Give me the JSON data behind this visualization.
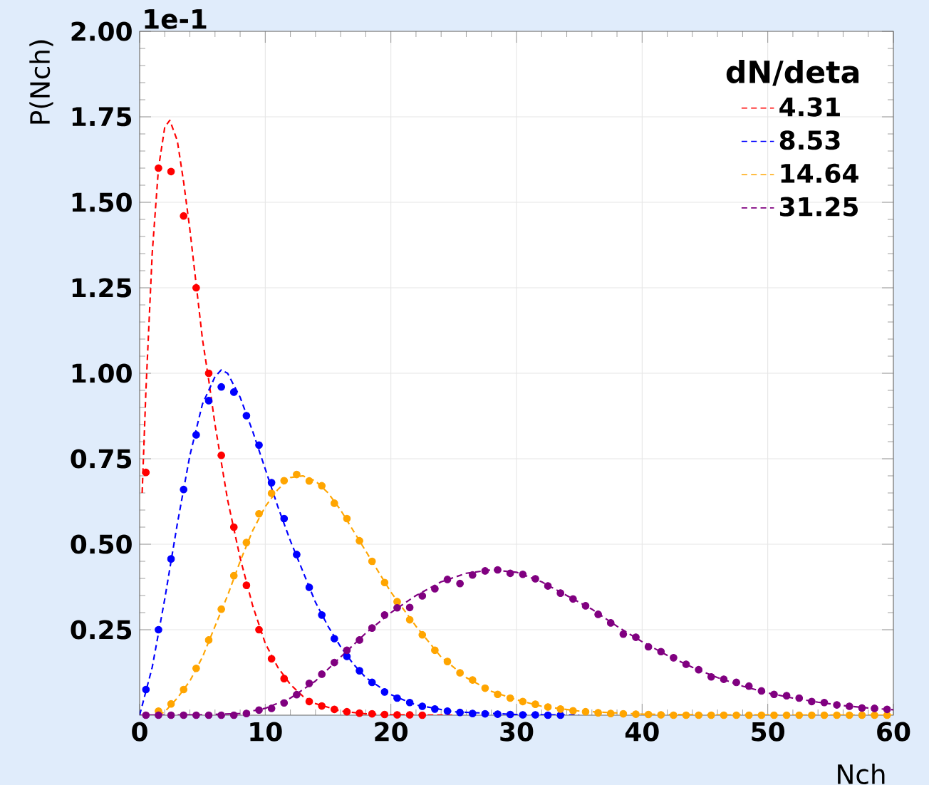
{
  "chart_data": {
    "type": "line",
    "xlabel": "Nch",
    "ylabel": "P(Nch)",
    "legend_title": "dN/deta",
    "legend": "top right",
    "grid": true,
    "xlim": [
      0,
      60
    ],
    "ylim": [
      0,
      2
    ],
    "xticks": [
      0,
      10,
      20,
      30,
      40,
      50,
      60
    ],
    "yticks": [
      {
        "value": 0.25,
        "label": "0.25"
      },
      {
        "value": 0.5,
        "label": "0.50"
      },
      {
        "value": 0.75,
        "label": "0.75"
      },
      {
        "value": 1,
        "label": "1.00"
      },
      {
        "value": 1.25,
        "label": "1.25"
      },
      {
        "value": 1.5,
        "label": "1.50"
      },
      {
        "value": 1.75,
        "label": "1.75"
      },
      {
        "value": 2,
        "label": "2.00"
      }
    ],
    "annotations": [
      "1e-1"
    ],
    "series": [
      {
        "name": "4.31",
        "line_style": "dashed",
        "marker": "none",
        "color": "#ff0000",
        "x": [
          0.2,
          0.5,
          1,
          1.5,
          2,
          2.4,
          3,
          3.5,
          4,
          4.5,
          5,
          5.5,
          6,
          7,
          8,
          9,
          10,
          11,
          12,
          13,
          14,
          16,
          18,
          20,
          25
        ],
        "values": [
          0.65,
          0.95,
          1.35,
          1.6,
          1.72,
          1.74,
          1.68,
          1.56,
          1.42,
          1.26,
          1.1,
          0.98,
          0.85,
          0.63,
          0.46,
          0.32,
          0.21,
          0.14,
          0.09,
          0.055,
          0.034,
          0.012,
          0.004,
          0.001,
          0
        ]
      },
      {
        "name": "8.53",
        "line_style": "dashed",
        "marker": "none",
        "color": "#0000ff",
        "x": [
          0,
          1,
          2,
          3,
          4,
          5,
          6,
          6.5,
          7,
          8,
          9,
          10,
          11,
          12,
          13,
          14,
          15,
          16,
          17,
          18,
          20,
          22,
          25,
          30,
          35
        ],
        "values": [
          0,
          0.14,
          0.34,
          0.56,
          0.76,
          0.91,
          0.99,
          1.01,
          1.0,
          0.93,
          0.83,
          0.72,
          0.61,
          0.51,
          0.42,
          0.33,
          0.26,
          0.2,
          0.15,
          0.11,
          0.06,
          0.03,
          0.01,
          0.002,
          0
        ]
      },
      {
        "name": "14.64",
        "line_style": "dashed",
        "marker": "none",
        "color": "#ffa500",
        "x": [
          1.5,
          2,
          3,
          4,
          5,
          6,
          7,
          8,
          9,
          10,
          11,
          12,
          13,
          14,
          15,
          16,
          18,
          20,
          22,
          24,
          26,
          28,
          30,
          32,
          35,
          40,
          45,
          60
        ],
        "values": [
          0,
          0.01,
          0.05,
          0.1,
          0.17,
          0.26,
          0.35,
          0.45,
          0.54,
          0.61,
          0.66,
          0.695,
          0.7,
          0.685,
          0.65,
          0.6,
          0.48,
          0.36,
          0.26,
          0.17,
          0.11,
          0.07,
          0.045,
          0.026,
          0.012,
          0.003,
          0.001,
          0
        ]
      },
      {
        "name": "31.25",
        "line_style": "dashed",
        "marker": "none",
        "color": "#800080",
        "x": [
          0,
          5,
          8,
          10,
          12,
          14,
          16,
          18,
          20,
          22,
          24,
          26,
          28,
          30,
          32,
          34,
          36,
          38,
          40,
          42,
          44,
          46,
          48,
          50,
          52,
          54,
          56,
          58,
          60
        ],
        "values": [
          0,
          0.001,
          0.005,
          0.02,
          0.05,
          0.1,
          0.17,
          0.24,
          0.3,
          0.35,
          0.39,
          0.415,
          0.425,
          0.418,
          0.39,
          0.35,
          0.31,
          0.26,
          0.215,
          0.175,
          0.14,
          0.11,
          0.085,
          0.065,
          0.05,
          0.038,
          0.028,
          0.021,
          0.016
        ]
      },
      {
        "type": "scatter",
        "marker": "circle",
        "color": "#ff0000",
        "x": [
          0.5,
          1.5,
          2.5,
          3.5,
          4.5,
          5.5,
          6.5,
          7.5,
          8.5,
          9.5,
          10.5,
          11.5,
          12.5,
          13.5,
          14.5,
          15.5,
          16.5,
          17.5,
          18.5,
          19.5,
          20.5,
          21.5,
          22.5
        ],
        "values": [
          0.71,
          1.6,
          1.59,
          1.46,
          1.25,
          1.0,
          0.76,
          0.55,
          0.38,
          0.25,
          0.165,
          0.107,
          null,
          0.04,
          0.027,
          0.017,
          0.01,
          0.006,
          0.004,
          0.002,
          0.001,
          0.001,
          0
        ]
      },
      {
        "type": "scatter",
        "marker": "circle",
        "color": "#0000ff",
        "x": [
          0.5,
          1.5,
          2.5,
          3.5,
          4.5,
          5.5,
          6.5,
          7.5,
          8.5,
          9.5,
          10.5,
          11.5,
          12.5,
          13.5,
          14.5,
          15.5,
          16.5,
          17.5,
          18.5,
          19.5,
          20.5,
          21.5,
          22.5,
          23.5,
          24.5,
          25.5,
          26.5,
          27.5,
          28.5,
          29.5,
          30.5,
          31.5,
          32.5,
          33.5
        ],
        "values": [
          0.075,
          0.25,
          0.457,
          0.66,
          0.82,
          0.92,
          0.96,
          0.945,
          0.876,
          0.79,
          0.68,
          0.575,
          0.47,
          0.374,
          0.293,
          0.224,
          0.172,
          0.13,
          0.096,
          0.068,
          0.05,
          0.037,
          0.026,
          0.018,
          0.012,
          0.008,
          0.005,
          0.004,
          0.003,
          0.002,
          0.001,
          0.001,
          0,
          0
        ]
      },
      {
        "type": "scatter",
        "marker": "circle",
        "color": "#ffa500",
        "x": [
          1.5,
          2.5,
          3.5,
          4.5,
          5.5,
          6.5,
          7.5,
          8.5,
          9.5,
          10.5,
          11.5,
          12.5,
          13.5,
          14.5,
          15.5,
          16.5,
          17.5,
          18.5,
          19.5,
          20.5,
          21.5,
          22.5,
          23.5,
          24.5,
          25.5,
          26.5,
          27.5,
          28.5,
          29.5,
          30.5,
          31.5,
          32.5,
          33.5,
          34.5,
          35.5,
          36.5,
          37.5,
          38.5,
          39.5,
          40.5,
          41.5,
          42.5,
          43.5,
          44.5,
          45.5,
          46.5,
          47.5,
          48.5,
          49.5,
          50.5,
          51.5,
          52.5,
          53.5,
          54.5,
          55.5,
          56.5,
          57.5,
          58.5,
          59.5
        ],
        "values": [
          0.012,
          0.033,
          0.075,
          0.137,
          0.22,
          0.31,
          0.408,
          0.505,
          0.589,
          0.649,
          0.686,
          0.704,
          0.685,
          0.671,
          0.62,
          0.575,
          0.51,
          0.45,
          0.388,
          0.332,
          0.279,
          0.235,
          0.19,
          0.157,
          0.124,
          0.103,
          0.079,
          0.061,
          0.05,
          0.04,
          0.032,
          0.024,
          0.018,
          0.013,
          0.01,
          0.007,
          0.005,
          0.004,
          0.003,
          0.002,
          0.001,
          0,
          0,
          0,
          0,
          0,
          0,
          0,
          0,
          0,
          0,
          0,
          0,
          0,
          0,
          0,
          0,
          0,
          0
        ]
      },
      {
        "type": "scatter",
        "marker": "circle",
        "color": "#800080",
        "x": [
          0.5,
          1.5,
          2.5,
          3.5,
          4.5,
          5.5,
          6.5,
          7.5,
          8.5,
          9.5,
          10.5,
          11.5,
          12.5,
          13.5,
          14.5,
          15.5,
          16.5,
          17.5,
          18.5,
          19.5,
          20.5,
          21.5,
          22.5,
          23.5,
          24.5,
          25.5,
          26.5,
          27.5,
          28.5,
          29.5,
          30.5,
          31.5,
          32.5,
          33.5,
          34.5,
          35.5,
          36.5,
          37.5,
          38.5,
          39.5,
          40.5,
          41.5,
          42.5,
          43.5,
          44.5,
          45.5,
          46.5,
          47.5,
          48.5,
          49.5,
          50.5,
          51.5,
          52.5,
          53.5,
          54.5,
          55.5,
          56.5,
          57.5,
          58.5,
          59.5
        ],
        "values": [
          0,
          0,
          0,
          0,
          0,
          0,
          0,
          0,
          0.005,
          0.015,
          0.02,
          0.036,
          0.06,
          0.093,
          0.12,
          0.154,
          0.19,
          0.22,
          0.255,
          0.293,
          0.314,
          0.315,
          0.349,
          0.37,
          0.397,
          0.385,
          0.41,
          0.422,
          0.425,
          0.415,
          0.412,
          0.399,
          0.378,
          0.357,
          0.34,
          0.32,
          0.295,
          0.27,
          0.237,
          0.228,
          0.2,
          0.186,
          0.168,
          0.149,
          0.133,
          0.112,
          0.105,
          0.096,
          0.085,
          0.071,
          0.061,
          0.057,
          0.05,
          0.04,
          0.037,
          0.03,
          0.026,
          0.021,
          0.02,
          0.017
        ]
      }
    ]
  }
}
